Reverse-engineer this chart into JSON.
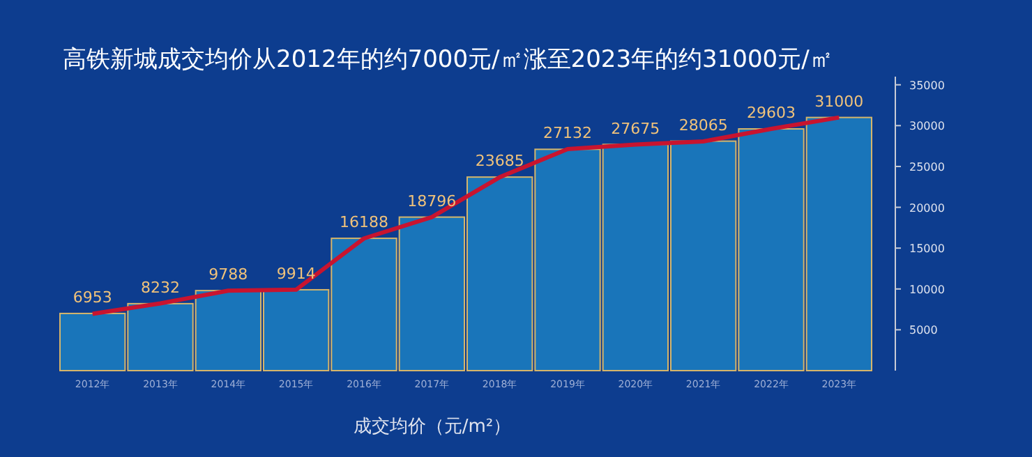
{
  "chart_data": {
    "type": "bar",
    "title": "高铁新城成交均价从2012年的约7000元/㎡涨至2023年的约31000元/㎡",
    "categories": [
      "2012年",
      "2013年",
      "2014年",
      "2015年",
      "2016年",
      "2017年",
      "2018年",
      "2019年",
      "2020年",
      "2021年",
      "2022年",
      "2023年"
    ],
    "series": [
      {
        "color": "#1c7fc2",
        "values": [
          7000,
          8200,
          9800,
          9900,
          16200,
          18800,
          23700,
          27100,
          27700,
          28100,
          29600,
          31000
        ]
      },
      {
        "type": "line",
        "color": "#c8142f",
        "values": [
          6953,
          8232,
          9788,
          9914,
          16188,
          18796,
          23685,
          27132,
          27675,
          28065,
          29603,
          31000
        ],
        "value_labels": [
          "6953",
          "8232",
          "9788",
          "9914",
          "16188",
          "18796",
          "23685",
          "27132",
          "27675",
          "28065",
          "29603",
          "31000"
        ]
      }
    ],
    "ylim": [
      0,
      36000
    ],
    "yticks": [
      5000,
      10000,
      15000,
      20000,
      25000,
      30000,
      35000
    ],
    "grid": false,
    "annotations": [
      "成交均价（元/m²）"
    ]
  }
}
